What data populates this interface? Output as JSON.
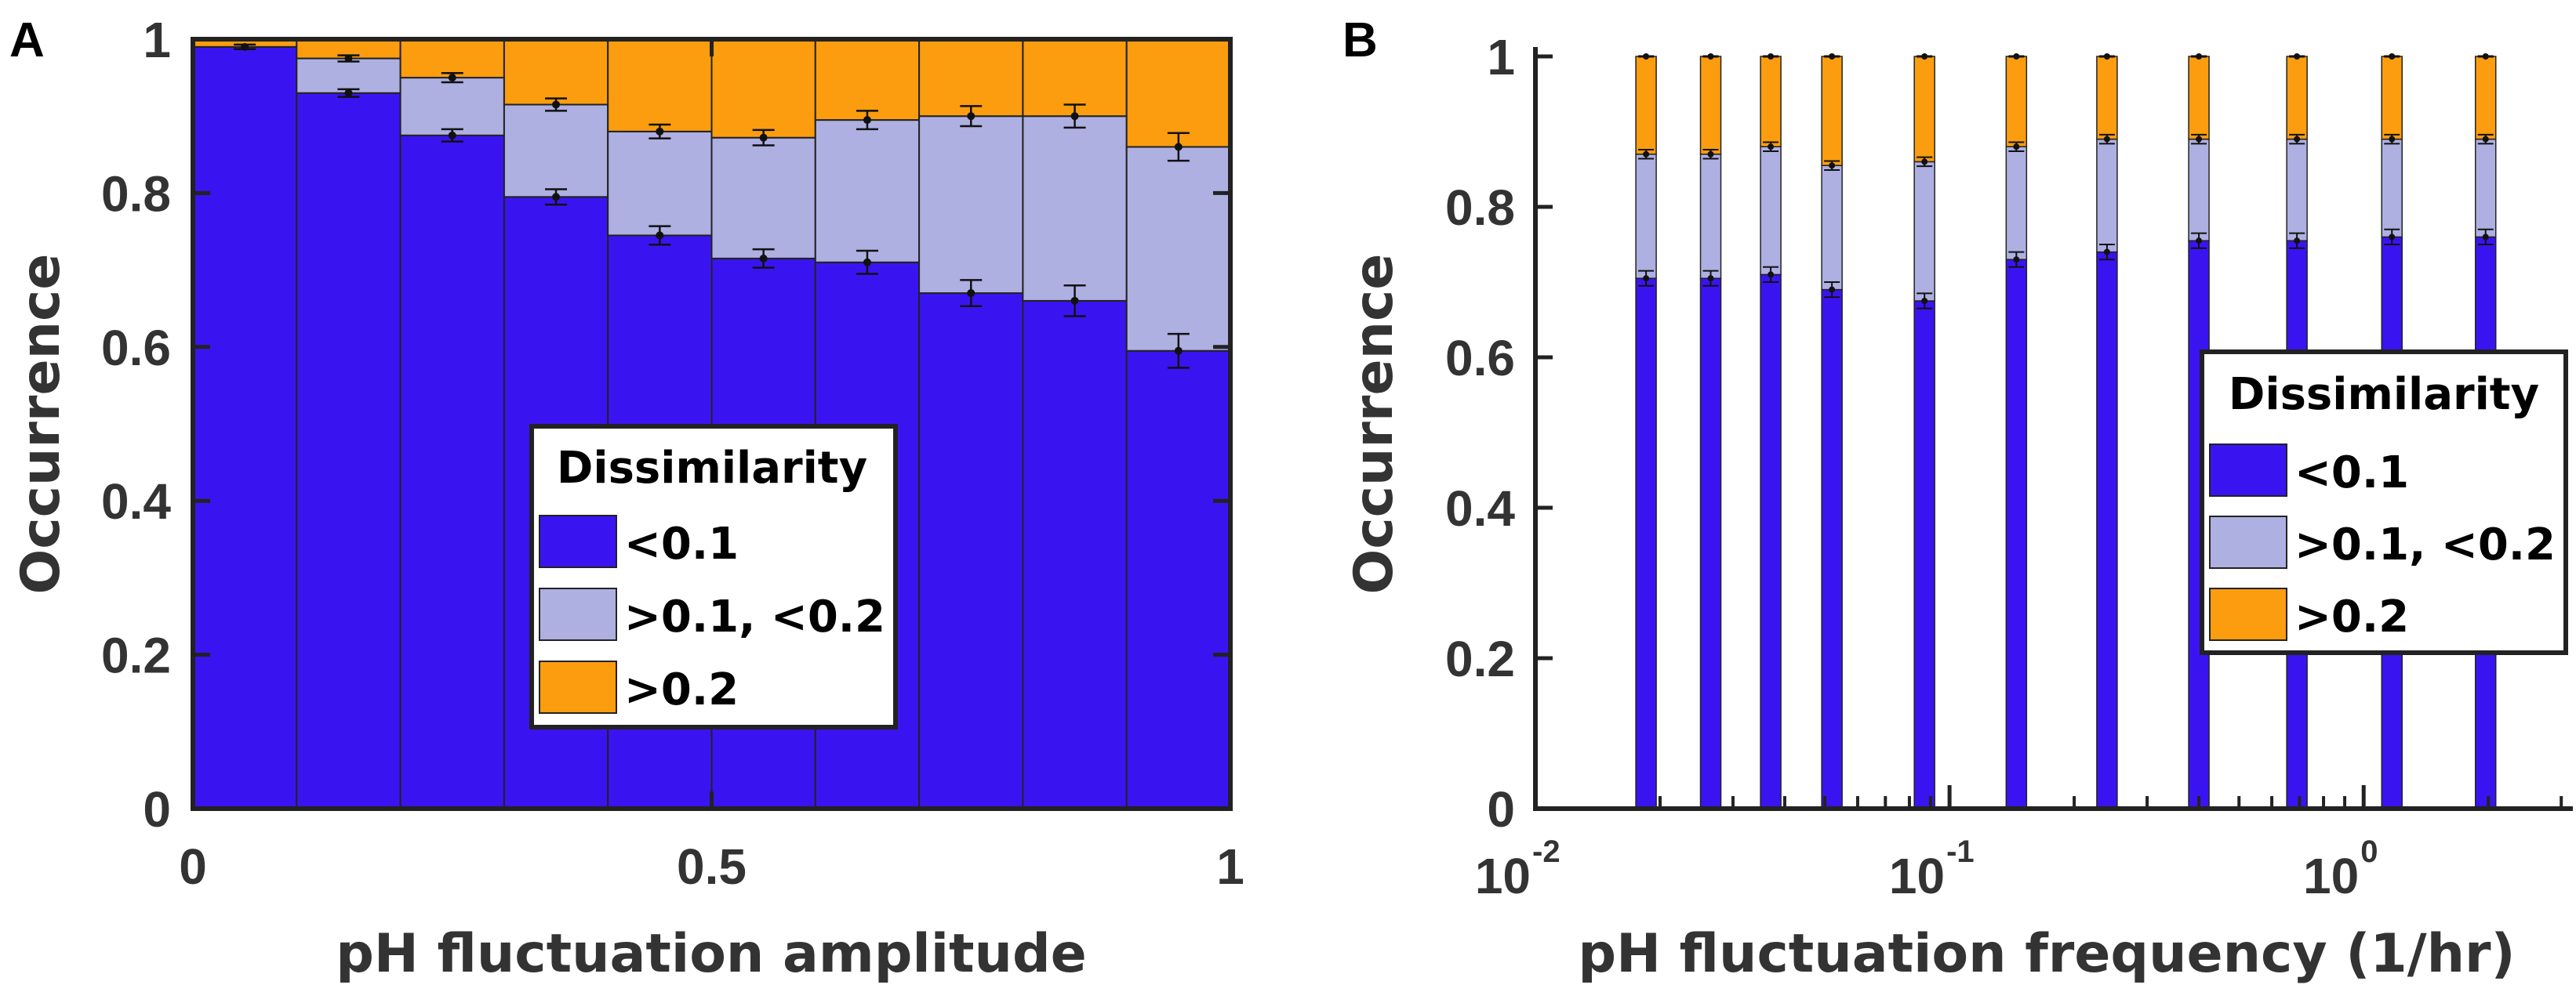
{
  "panel_labels": {
    "a": "A",
    "b": "B"
  },
  "colors": {
    "lt01": "#3a14f0",
    "mid": "#aeb0e2",
    "gt02": "#fb9d0f",
    "axis": "#222222",
    "edge": "#222222"
  },
  "legend": {
    "title": "Dissimilarity",
    "entries": [
      "<0.1",
      ">0.1, <0.2",
      ">0.2"
    ]
  },
  "chart_data": [
    {
      "type": "bar",
      "stacked": true,
      "panel": "A",
      "xlabel": "pH fluctuation amplitude",
      "ylabel": "Occurrence",
      "xlim": [
        0,
        1
      ],
      "ylim": [
        0,
        1
      ],
      "x_ticks": [
        "0",
        "0.5",
        "1"
      ],
      "y_ticks": [
        "0",
        "0.2",
        "0.4",
        "0.6",
        "0.8",
        "1"
      ],
      "bins": [
        [
          0.0,
          0.1
        ],
        [
          0.1,
          0.2
        ],
        [
          0.2,
          0.3
        ],
        [
          0.3,
          0.4
        ],
        [
          0.4,
          0.5
        ],
        [
          0.5,
          0.6
        ],
        [
          0.6,
          0.7
        ],
        [
          0.7,
          0.8
        ],
        [
          0.8,
          0.9
        ],
        [
          0.9,
          1.0
        ]
      ],
      "series": [
        {
          "name": "<0.1",
          "values": [
            0.99,
            0.93,
            0.875,
            0.795,
            0.745,
            0.715,
            0.71,
            0.67,
            0.66,
            0.595
          ],
          "errors": [
            0.003,
            0.005,
            0.008,
            0.01,
            0.012,
            0.012,
            0.015,
            0.017,
            0.02,
            0.022
          ]
        },
        {
          "name": ">0.1, <0.2",
          "values": [
            0.0,
            0.045,
            0.075,
            0.12,
            0.135,
            0.157,
            0.185,
            0.23,
            0.24,
            0.265
          ],
          "errors": [
            0.0,
            0.004,
            0.006,
            0.008,
            0.009,
            0.01,
            0.012,
            0.013,
            0.015,
            0.018
          ]
        },
        {
          "name": ">0.2",
          "values": [
            0.01,
            0.025,
            0.05,
            0.085,
            0.12,
            0.128,
            0.105,
            0.1,
            0.1,
            0.14
          ],
          "errors": [
            0,
            0,
            0,
            0,
            0,
            0,
            0,
            0,
            0,
            0
          ]
        }
      ]
    },
    {
      "type": "bar",
      "stacked": true,
      "panel": "B",
      "xlabel": "pH fluctuation frequency (1/hr)",
      "ylabel": "Occurrence",
      "xscale": "log",
      "xlim": [
        0.01,
        3.2
      ],
      "ylim": [
        0,
        1
      ],
      "x_ticks": [
        {
          "base": "10",
          "exp": "-2"
        },
        {
          "base": "10",
          "exp": "-1"
        },
        {
          "base": "10",
          "exp": "0"
        }
      ],
      "y_ticks": [
        "0",
        "0.2",
        "0.4",
        "0.6",
        "0.8",
        "1"
      ],
      "x": [
        0.0185,
        0.0265,
        0.037,
        0.052,
        0.087,
        0.145,
        0.24,
        0.4,
        0.69,
        1.17,
        1.97
      ],
      "series": [
        {
          "name": "<0.1",
          "values": [
            0.705,
            0.705,
            0.71,
            0.69,
            0.675,
            0.73,
            0.74,
            0.755,
            0.755,
            0.76,
            0.76
          ],
          "errors": [
            0.01,
            0.01,
            0.01,
            0.01,
            0.01,
            0.01,
            0.01,
            0.01,
            0.01,
            0.01,
            0.01
          ]
        },
        {
          "name": ">0.1, <0.2",
          "values": [
            0.165,
            0.165,
            0.17,
            0.165,
            0.185,
            0.15,
            0.15,
            0.135,
            0.135,
            0.13,
            0.13
          ],
          "errors": [
            0.006,
            0.006,
            0.006,
            0.006,
            0.006,
            0.006,
            0.006,
            0.006,
            0.006,
            0.006,
            0.006
          ]
        },
        {
          "name": ">0.2",
          "values": [
            0.13,
            0.13,
            0.12,
            0.145,
            0.14,
            0.12,
            0.11,
            0.11,
            0.11,
            0.11,
            0.11
          ],
          "errors": [
            0,
            0,
            0,
            0,
            0,
            0,
            0,
            0,
            0,
            0,
            0
          ]
        }
      ]
    }
  ]
}
